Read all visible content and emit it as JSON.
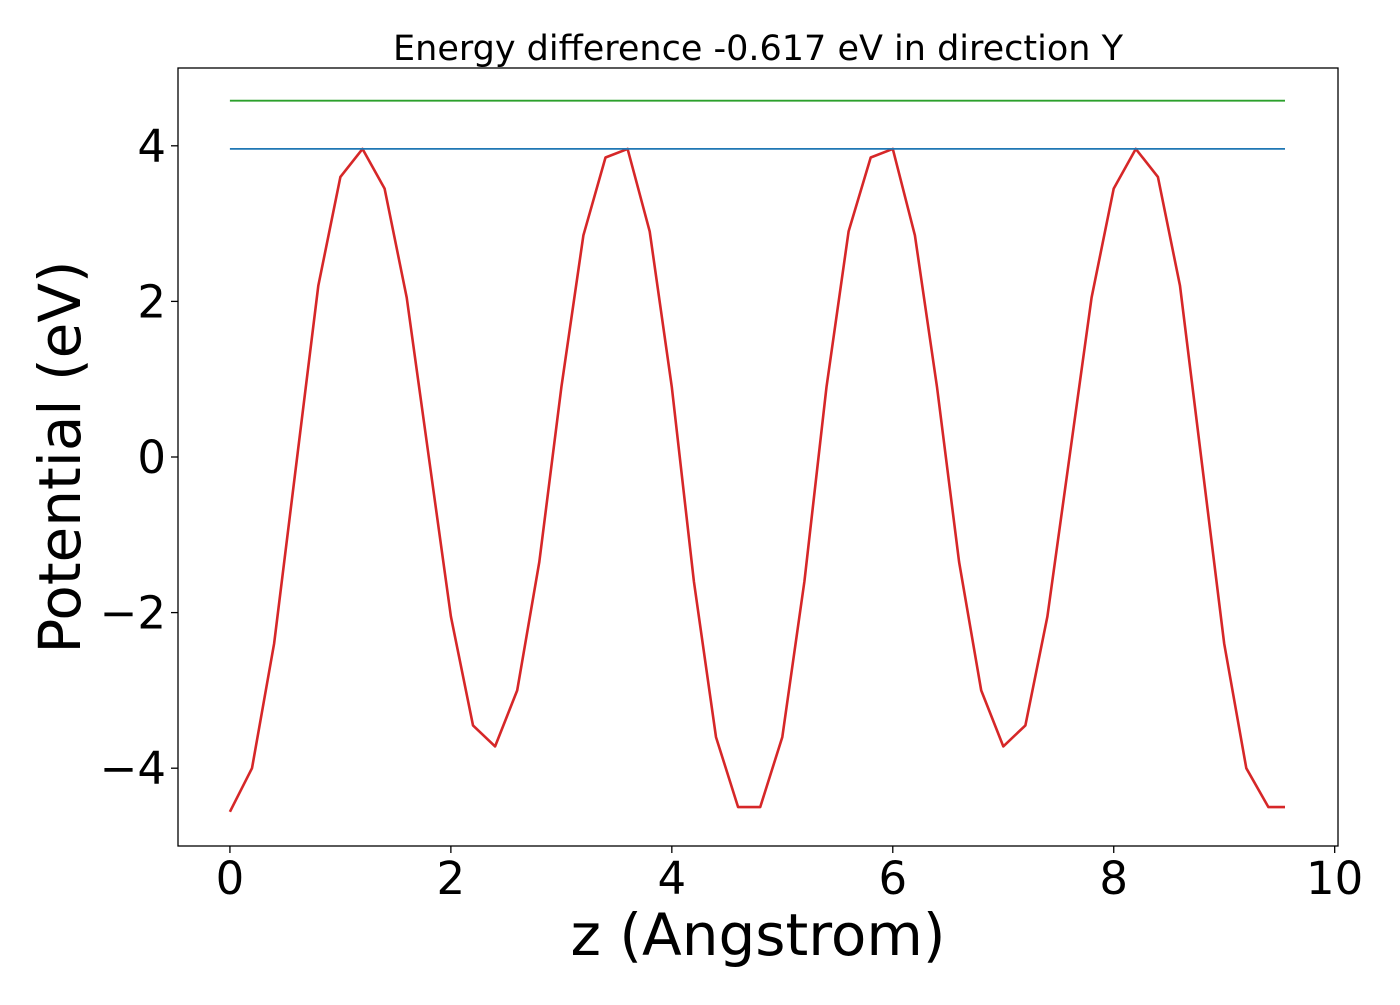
{
  "chart_data": {
    "type": "line",
    "title": "Energy difference -0.617 eV in direction Y",
    "xlabel": "z (Angstrom)",
    "ylabel": "Potential (eV)",
    "xlim": [
      -0.47,
      10.03
    ],
    "ylim": [
      -5.0,
      5.0
    ],
    "x_ticks": [
      0,
      2,
      4,
      6,
      8,
      10
    ],
    "x_tick_labels": [
      "0",
      "2",
      "4",
      "6",
      "8",
      "10"
    ],
    "y_ticks": [
      -4,
      -2,
      0,
      2,
      4
    ],
    "y_tick_labels": [
      "−4",
      "−2",
      "0",
      "2",
      "4"
    ],
    "grid": false,
    "legend": "none",
    "series": [
      {
        "color": "#d62728",
        "style": "line",
        "x": [
          0.0,
          0.2,
          0.4,
          0.6,
          0.8,
          1.0,
          1.2,
          1.4,
          1.6,
          1.8,
          2.0,
          2.2,
          2.4,
          2.6,
          2.8,
          3.0,
          3.2,
          3.4,
          3.6,
          3.8,
          4.0,
          4.2,
          4.4,
          4.6,
          4.8,
          5.0,
          5.2,
          5.4,
          5.6,
          5.8,
          6.0,
          6.2,
          6.4,
          6.6,
          6.8,
          7.0,
          7.2,
          7.4,
          7.6,
          7.8,
          8.0,
          8.2,
          8.4,
          8.6,
          8.8,
          9.0,
          9.2,
          9.4,
          9.55
        ],
        "y": [
          -4.56,
          -4.0,
          -2.4,
          -0.1,
          2.2,
          3.6,
          3.96,
          3.45,
          2.05,
          0.0,
          -2.05,
          -3.45,
          -3.72,
          -3.0,
          -1.35,
          0.9,
          2.85,
          3.85,
          3.96,
          2.9,
          0.9,
          -1.6,
          -3.6,
          -4.5,
          -4.5,
          -3.6,
          -1.6,
          0.9,
          2.9,
          3.85,
          3.96,
          2.85,
          0.9,
          -1.35,
          -3.0,
          -3.72,
          -3.45,
          -2.05,
          0.0,
          2.05,
          3.45,
          3.96,
          3.6,
          2.2,
          -0.1,
          -2.4,
          -4.0,
          -4.5,
          -4.5
        ]
      },
      {
        "color": "#1f77b4",
        "style": "hline",
        "x": [
          0.0,
          9.55
        ],
        "y": [
          3.96,
          3.96
        ]
      },
      {
        "color": "#2ca02c",
        "style": "hline",
        "x": [
          0.0,
          9.55
        ],
        "y": [
          4.58,
          4.58
        ]
      }
    ]
  }
}
